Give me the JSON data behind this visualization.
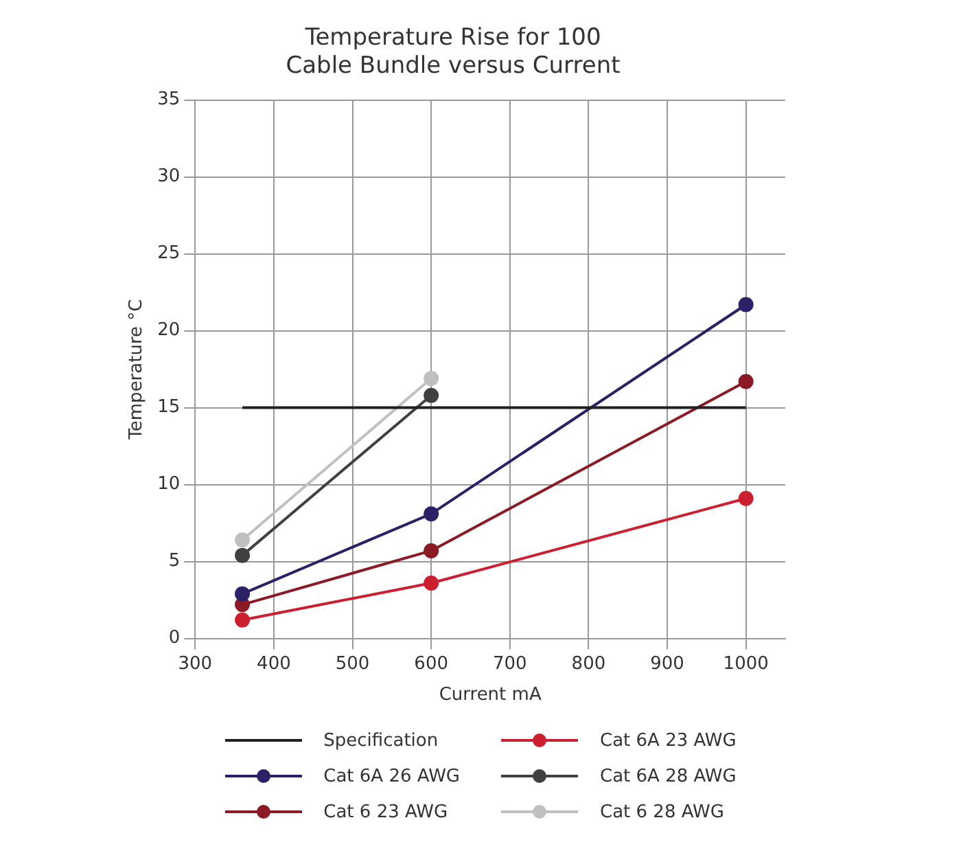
{
  "chart_data": {
    "type": "line",
    "title": "Temperature Rise for 100\nCable Bundle versus Current",
    "xlabel": "Current mA",
    "ylabel": "Temperature °C",
    "xlim": [
      300,
      1050
    ],
    "xticks": [
      300,
      400,
      500,
      600,
      700,
      800,
      900,
      1000
    ],
    "ylim": [
      0,
      35
    ],
    "yticks": [
      0,
      5,
      10,
      15,
      20,
      25,
      30,
      35
    ],
    "grid": true,
    "legend": "bottom",
    "marker": "circle",
    "line_style": "solid",
    "series": [
      {
        "name": "Specification",
        "color": "#231f20",
        "x": [
          360,
          1000
        ],
        "values": [
          15,
          15
        ],
        "marker": "none"
      },
      {
        "name": "Cat 6A 26 AWG",
        "color": "#2b2166",
        "x": [
          360,
          600,
          1000
        ],
        "values": [
          2.9,
          8.1,
          21.7
        ]
      },
      {
        "name": "Cat 6 23 AWG",
        "color": "#8b1a24",
        "x": [
          360,
          600,
          1000
        ],
        "values": [
          2.2,
          5.7,
          16.7
        ]
      },
      {
        "name": "Cat 6A 23 AWG",
        "color": "#cc2030",
        "x": [
          360,
          600,
          1000
        ],
        "values": [
          1.2,
          3.6,
          9.1
        ]
      },
      {
        "name": "Cat 6A 28 AWG",
        "color": "#404040",
        "x": [
          360,
          600
        ],
        "values": [
          5.4,
          15.8
        ]
      },
      {
        "name": "Cat 6 28 AWG",
        "color": "#c0c0c0",
        "x": [
          360,
          600
        ],
        "values": [
          6.4,
          16.9
        ]
      }
    ]
  }
}
